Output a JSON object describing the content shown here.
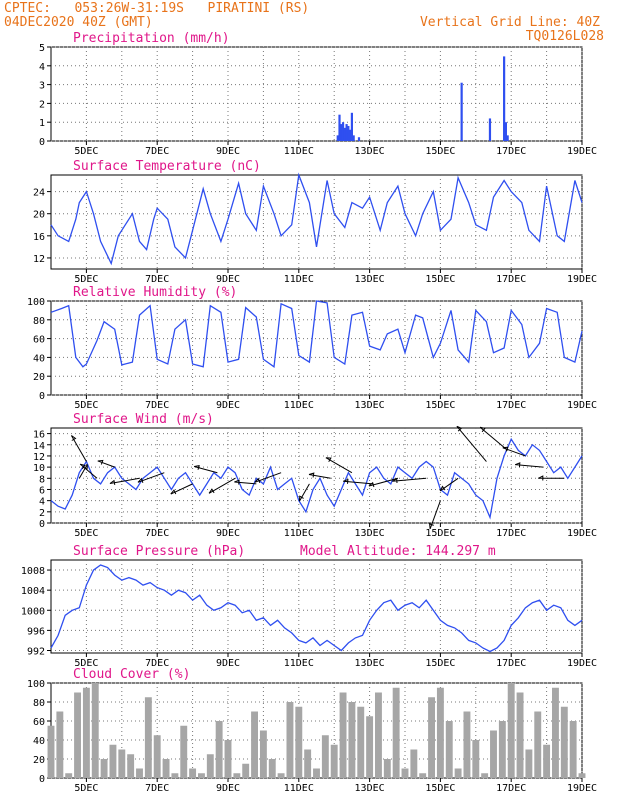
{
  "header": {
    "left1": "CPTEC:   053:26W-31:19S   PIRATINI (RS)",
    "left2": "04DEC2020 40Z (GMT)",
    "right1": "Vertical Grid Line: 40Z",
    "right2": "TQ0126L028"
  },
  "colors": {
    "header": "#e8731a",
    "title": "#e0178a",
    "line": "#2f4ff0",
    "bar": "#2f4ff0",
    "cloud": "#a6a6a6",
    "grid": "#777777"
  },
  "x_tick_labels": [
    "5DEC",
    "7DEC",
    "9DEC",
    "11DEC",
    "13DEC",
    "15DEC",
    "17DEC",
    "19DEC"
  ],
  "chart_data": [
    {
      "id": "precip",
      "type": "bar",
      "title": "Precipitation (mm/h)",
      "xlabel": "",
      "ylabel": "",
      "x_range": [
        4,
        19
      ],
      "ylim": [
        0,
        5
      ],
      "yticks": [
        0,
        1,
        2,
        3,
        4,
        5
      ],
      "x": [
        12.1,
        12.15,
        12.2,
        12.25,
        12.3,
        12.35,
        12.4,
        12.45,
        12.5,
        12.55,
        12.7,
        15.6,
        16.4,
        16.8,
        16.85,
        16.9
      ],
      "values": [
        0.3,
        1.4,
        0.9,
        1.0,
        0.7,
        0.9,
        0.8,
        0.6,
        1.5,
        0.3,
        0.2,
        3.1,
        1.2,
        4.5,
        1.0,
        0.3
      ]
    },
    {
      "id": "temp",
      "type": "line",
      "title": "Surface Temperature (nC)",
      "xlabel": "",
      "ylabel": "",
      "x_range": [
        4,
        19
      ],
      "ylim": [
        10,
        27
      ],
      "yticks": [
        12,
        16,
        20,
        24
      ],
      "x": [
        4,
        4.2,
        4.5,
        4.7,
        4.8,
        5,
        5.2,
        5.4,
        5.7,
        5.9,
        6,
        6.3,
        6.5,
        6.7,
        6.9,
        7,
        7.3,
        7.5,
        7.8,
        8,
        8.3,
        8.5,
        8.8,
        9,
        9.3,
        9.5,
        9.8,
        10,
        10.3,
        10.5,
        10.8,
        11,
        11.3,
        11.5,
        11.8,
        12,
        12.3,
        12.5,
        12.8,
        13,
        13.3,
        13.5,
        13.8,
        14,
        14.3,
        14.5,
        14.8,
        15,
        15.3,
        15.5,
        15.8,
        16,
        16.3,
        16.5,
        16.8,
        17,
        17.3,
        17.5,
        17.8,
        18,
        18.3,
        18.5,
        18.8,
        19
      ],
      "values": [
        18,
        16,
        15,
        19,
        22,
        24,
        20,
        15,
        11,
        16,
        17,
        20,
        15,
        13.5,
        19,
        21,
        19,
        14,
        12,
        17,
        24.5,
        20,
        15,
        19,
        25.5,
        20,
        17,
        25,
        20,
        16,
        18,
        27,
        22,
        14,
        26,
        20,
        17.5,
        22,
        21,
        23,
        17,
        22,
        25,
        20,
        16,
        20,
        24,
        17,
        19,
        26.5,
        22,
        18,
        17,
        23,
        26,
        24,
        22,
        17,
        15,
        25,
        16,
        15,
        26,
        22
      ]
    },
    {
      "id": "rh",
      "type": "line",
      "title": "Relative Humidity (%)",
      "xlabel": "",
      "ylabel": "",
      "x_range": [
        4,
        19
      ],
      "ylim": [
        0,
        100
      ],
      "yticks": [
        0,
        20,
        40,
        60,
        80,
        100
      ],
      "x": [
        4,
        4.3,
        4.5,
        4.7,
        4.9,
        5,
        5.3,
        5.5,
        5.8,
        6,
        6.3,
        6.5,
        6.8,
        7,
        7.3,
        7.5,
        7.8,
        8,
        8.3,
        8.5,
        8.8,
        9,
        9.3,
        9.5,
        9.8,
        10,
        10.3,
        10.5,
        10.8,
        11,
        11.3,
        11.5,
        11.8,
        12,
        12.3,
        12.5,
        12.8,
        13,
        13.3,
        13.5,
        13.8,
        14,
        14.3,
        14.5,
        14.8,
        15,
        15.3,
        15.5,
        15.8,
        16,
        16.3,
        16.5,
        16.8,
        17,
        17.3,
        17.5,
        17.8,
        18,
        18.3,
        18.5,
        18.8,
        19
      ],
      "values": [
        88,
        92,
        95,
        40,
        30,
        33,
        58,
        78,
        70,
        32,
        35,
        85,
        95,
        38,
        33,
        70,
        80,
        33,
        30,
        95,
        88,
        35,
        38,
        93,
        83,
        38,
        30,
        97,
        92,
        42,
        35,
        100,
        98,
        40,
        33,
        85,
        88,
        52,
        48,
        65,
        70,
        45,
        85,
        82,
        40,
        55,
        90,
        48,
        35,
        90,
        78,
        45,
        50,
        90,
        75,
        40,
        55,
        92,
        88,
        40,
        35,
        68
      ]
    },
    {
      "id": "wind",
      "type": "line",
      "title": "Surface Wind (m/s)",
      "xlabel": "",
      "ylabel": "",
      "x_range": [
        4,
        19
      ],
      "ylim": [
        0,
        17
      ],
      "yticks": [
        0,
        2,
        4,
        6,
        8,
        10,
        12,
        14,
        16
      ],
      "x": [
        4,
        4.2,
        4.4,
        4.6,
        4.8,
        5,
        5.2,
        5.4,
        5.6,
        5.8,
        6,
        6.2,
        6.4,
        6.6,
        6.8,
        7,
        7.2,
        7.4,
        7.6,
        7.8,
        8,
        8.2,
        8.4,
        8.6,
        8.8,
        9,
        9.2,
        9.4,
        9.6,
        9.8,
        10,
        10.2,
        10.4,
        10.6,
        10.8,
        11,
        11.2,
        11.4,
        11.6,
        11.8,
        12,
        12.2,
        12.4,
        12.6,
        12.8,
        13,
        13.2,
        13.4,
        13.6,
        13.8,
        14,
        14.2,
        14.4,
        14.6,
        14.8,
        15,
        15.2,
        15.4,
        15.6,
        15.8,
        16,
        16.2,
        16.4,
        16.6,
        16.8,
        17,
        17.2,
        17.4,
        17.6,
        17.8,
        18,
        18.2,
        18.4,
        18.6,
        18.8,
        19
      ],
      "values": [
        4,
        3,
        2.5,
        5,
        9,
        11,
        8,
        7,
        9,
        10,
        8,
        7,
        6,
        8,
        9,
        10,
        8,
        6,
        8,
        9,
        7,
        5,
        7,
        9,
        8,
        10,
        9,
        6,
        5,
        8,
        7,
        10,
        6,
        7,
        8,
        4,
        2,
        6,
        8,
        5,
        3,
        6,
        9,
        7,
        5,
        9,
        10,
        8,
        7,
        10,
        9,
        8,
        10,
        11,
        10,
        6,
        5,
        9,
        8,
        7,
        5,
        4,
        1,
        8,
        12,
        15,
        13,
        12,
        14,
        13,
        11,
        9,
        10,
        8,
        10,
        12
      ]
    },
    {
      "id": "pres",
      "type": "line",
      "title": "Surface Pressure (hPa)",
      "annotation": "Model Altitude: 144.297 m",
      "xlabel": "",
      "ylabel": "",
      "x_range": [
        4,
        19
      ],
      "ylim": [
        991.5,
        1010
      ],
      "yticks": [
        992,
        996,
        1000,
        1004,
        1008
      ],
      "x": [
        4,
        4.2,
        4.4,
        4.6,
        4.8,
        5,
        5.2,
        5.4,
        5.6,
        5.8,
        6,
        6.2,
        6.4,
        6.6,
        6.8,
        7,
        7.2,
        7.4,
        7.6,
        7.8,
        8,
        8.2,
        8.4,
        8.6,
        8.8,
        9,
        9.2,
        9.4,
        9.6,
        9.8,
        10,
        10.2,
        10.4,
        10.6,
        10.8,
        11,
        11.2,
        11.4,
        11.6,
        11.8,
        12,
        12.2,
        12.4,
        12.6,
        12.8,
        13,
        13.2,
        13.4,
        13.6,
        13.8,
        14,
        14.2,
        14.4,
        14.6,
        14.8,
        15,
        15.2,
        15.4,
        15.6,
        15.8,
        16,
        16.2,
        16.4,
        16.6,
        16.8,
        17,
        17.2,
        17.4,
        17.6,
        17.8,
        18,
        18.2,
        18.4,
        18.6,
        18.8,
        19
      ],
      "values": [
        992.5,
        995,
        999,
        1000,
        1000.5,
        1005,
        1008,
        1009,
        1008.5,
        1007,
        1006,
        1006.5,
        1006,
        1005,
        1005.5,
        1004.5,
        1004,
        1003,
        1004,
        1003.5,
        1002,
        1003,
        1001,
        1000,
        1000.5,
        1001.5,
        1001,
        999.5,
        1000,
        998,
        998.5,
        997,
        998,
        996.5,
        995.5,
        994,
        993.5,
        994.5,
        993,
        994,
        993,
        992,
        993.5,
        994.5,
        995,
        998,
        1000,
        1001.5,
        1002,
        1000,
        1001,
        1001.5,
        1000.5,
        1002,
        1000,
        998,
        997,
        996.5,
        995.5,
        994,
        993.5,
        992.5,
        991.8,
        992.5,
        994,
        997,
        998.5,
        1000.5,
        1001.5,
        1002,
        1000,
        1001,
        1000.5,
        998,
        997,
        998
      ]
    },
    {
      "id": "cloud",
      "type": "bar",
      "title": "Cloud Cover (%)",
      "xlabel": "",
      "ylabel": "",
      "x_range": [
        4,
        19
      ],
      "ylim": [
        0,
        100
      ],
      "yticks": [
        0,
        20,
        40,
        60,
        80,
        100
      ],
      "x": [
        4,
        4.25,
        4.5,
        4.75,
        5,
        5.25,
        5.5,
        5.75,
        6,
        6.25,
        6.5,
        6.75,
        7,
        7.25,
        7.5,
        7.75,
        8,
        8.25,
        8.5,
        8.75,
        9,
        9.25,
        9.5,
        9.75,
        10,
        10.25,
        10.5,
        10.75,
        11,
        11.25,
        11.5,
        11.75,
        12,
        12.25,
        12.5,
        12.75,
        13,
        13.25,
        13.5,
        13.75,
        14,
        14.25,
        14.5,
        14.75,
        15,
        15.25,
        15.5,
        15.75,
        16,
        16.25,
        16.5,
        16.75,
        17,
        17.25,
        17.5,
        17.75,
        18,
        18.25,
        18.5,
        18.75,
        19
      ],
      "values": [
        55,
        70,
        5,
        90,
        95,
        100,
        20,
        35,
        30,
        25,
        10,
        85,
        45,
        20,
        5,
        55,
        10,
        5,
        25,
        60,
        40,
        5,
        15,
        70,
        50,
        20,
        5,
        80,
        75,
        30,
        10,
        45,
        35,
        90,
        80,
        75,
        65,
        90,
        20,
        95,
        10,
        30,
        5,
        85,
        95,
        60,
        10,
        70,
        40,
        5,
        50,
        60,
        100,
        90,
        30,
        70,
        35,
        95,
        75,
        60,
        5
      ]
    }
  ],
  "wind_barbs": [
    {
      "day": 4.8,
      "speed": 8,
      "dir_deg": 60,
      "len": 16
    },
    {
      "day": 5.0,
      "speed": 11,
      "dir_deg": 120,
      "len": 30
    },
    {
      "day": 5.3,
      "speed": 8,
      "dir_deg": 140,
      "len": 22
    },
    {
      "day": 5.8,
      "speed": 10,
      "dir_deg": 160,
      "len": 18
    },
    {
      "day": 6.5,
      "speed": 8,
      "dir_deg": 190,
      "len": 30
    },
    {
      "day": 7.2,
      "speed": 9,
      "dir_deg": 200,
      "len": 28
    },
    {
      "day": 8.0,
      "speed": 7,
      "dir_deg": 205,
      "len": 24
    },
    {
      "day": 8.7,
      "speed": 9,
      "dir_deg": 165,
      "len": 24
    },
    {
      "day": 9.2,
      "speed": 8,
      "dir_deg": 210,
      "len": 30
    },
    {
      "day": 9.8,
      "speed": 7,
      "dir_deg": 175,
      "len": 22
    },
    {
      "day": 10.5,
      "speed": 9,
      "dir_deg": 200,
      "len": 28
    },
    {
      "day": 11.3,
      "speed": 7,
      "dir_deg": 240,
      "len": 20
    },
    {
      "day": 11.9,
      "speed": 8,
      "dir_deg": 170,
      "len": 22
    },
    {
      "day": 12.5,
      "speed": 9,
      "dir_deg": 150,
      "len": 30
    },
    {
      "day": 13.1,
      "speed": 7,
      "dir_deg": 175,
      "len": 30
    },
    {
      "day": 13.8,
      "speed": 8,
      "dir_deg": 195,
      "len": 30
    },
    {
      "day": 14.6,
      "speed": 8,
      "dir_deg": 185,
      "len": 34
    },
    {
      "day": 15.0,
      "speed": 4,
      "dir_deg": 250,
      "len": 30
    },
    {
      "day": 15.5,
      "speed": 8,
      "dir_deg": 215,
      "len": 22
    },
    {
      "day": 16.3,
      "speed": 11,
      "dir_deg": 130,
      "len": 46
    },
    {
      "day": 16.9,
      "speed": 13,
      "dir_deg": 140,
      "len": 36
    },
    {
      "day": 17.4,
      "speed": 12,
      "dir_deg": 160,
      "len": 24
    },
    {
      "day": 17.9,
      "speed": 10,
      "dir_deg": 175,
      "len": 28
    },
    {
      "day": 18.5,
      "speed": 8,
      "dir_deg": 180,
      "len": 26
    }
  ]
}
